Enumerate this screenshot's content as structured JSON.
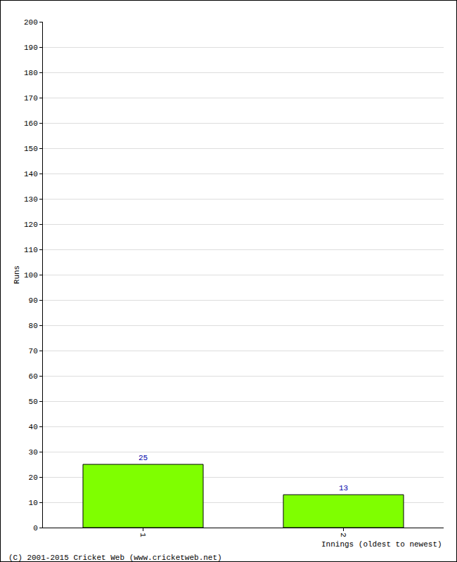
{
  "chart_data": {
    "type": "bar",
    "categories": [
      "1",
      "2"
    ],
    "values": [
      25,
      13
    ],
    "color": "#7fff00",
    "ylabel": "Runs",
    "xlabel": "Innings (oldest to newest)",
    "annotations": [
      "(C) 2001-2015 Cricket Web (www.cricketweb.net)"
    ],
    "ylim": [
      0,
      200
    ],
    "yticks": [
      0,
      10,
      20,
      30,
      40,
      50,
      60,
      70,
      80,
      90,
      100,
      110,
      120,
      130,
      140,
      150,
      160,
      170,
      180,
      190,
      200
    ],
    "grid": true,
    "data_labels": true
  }
}
